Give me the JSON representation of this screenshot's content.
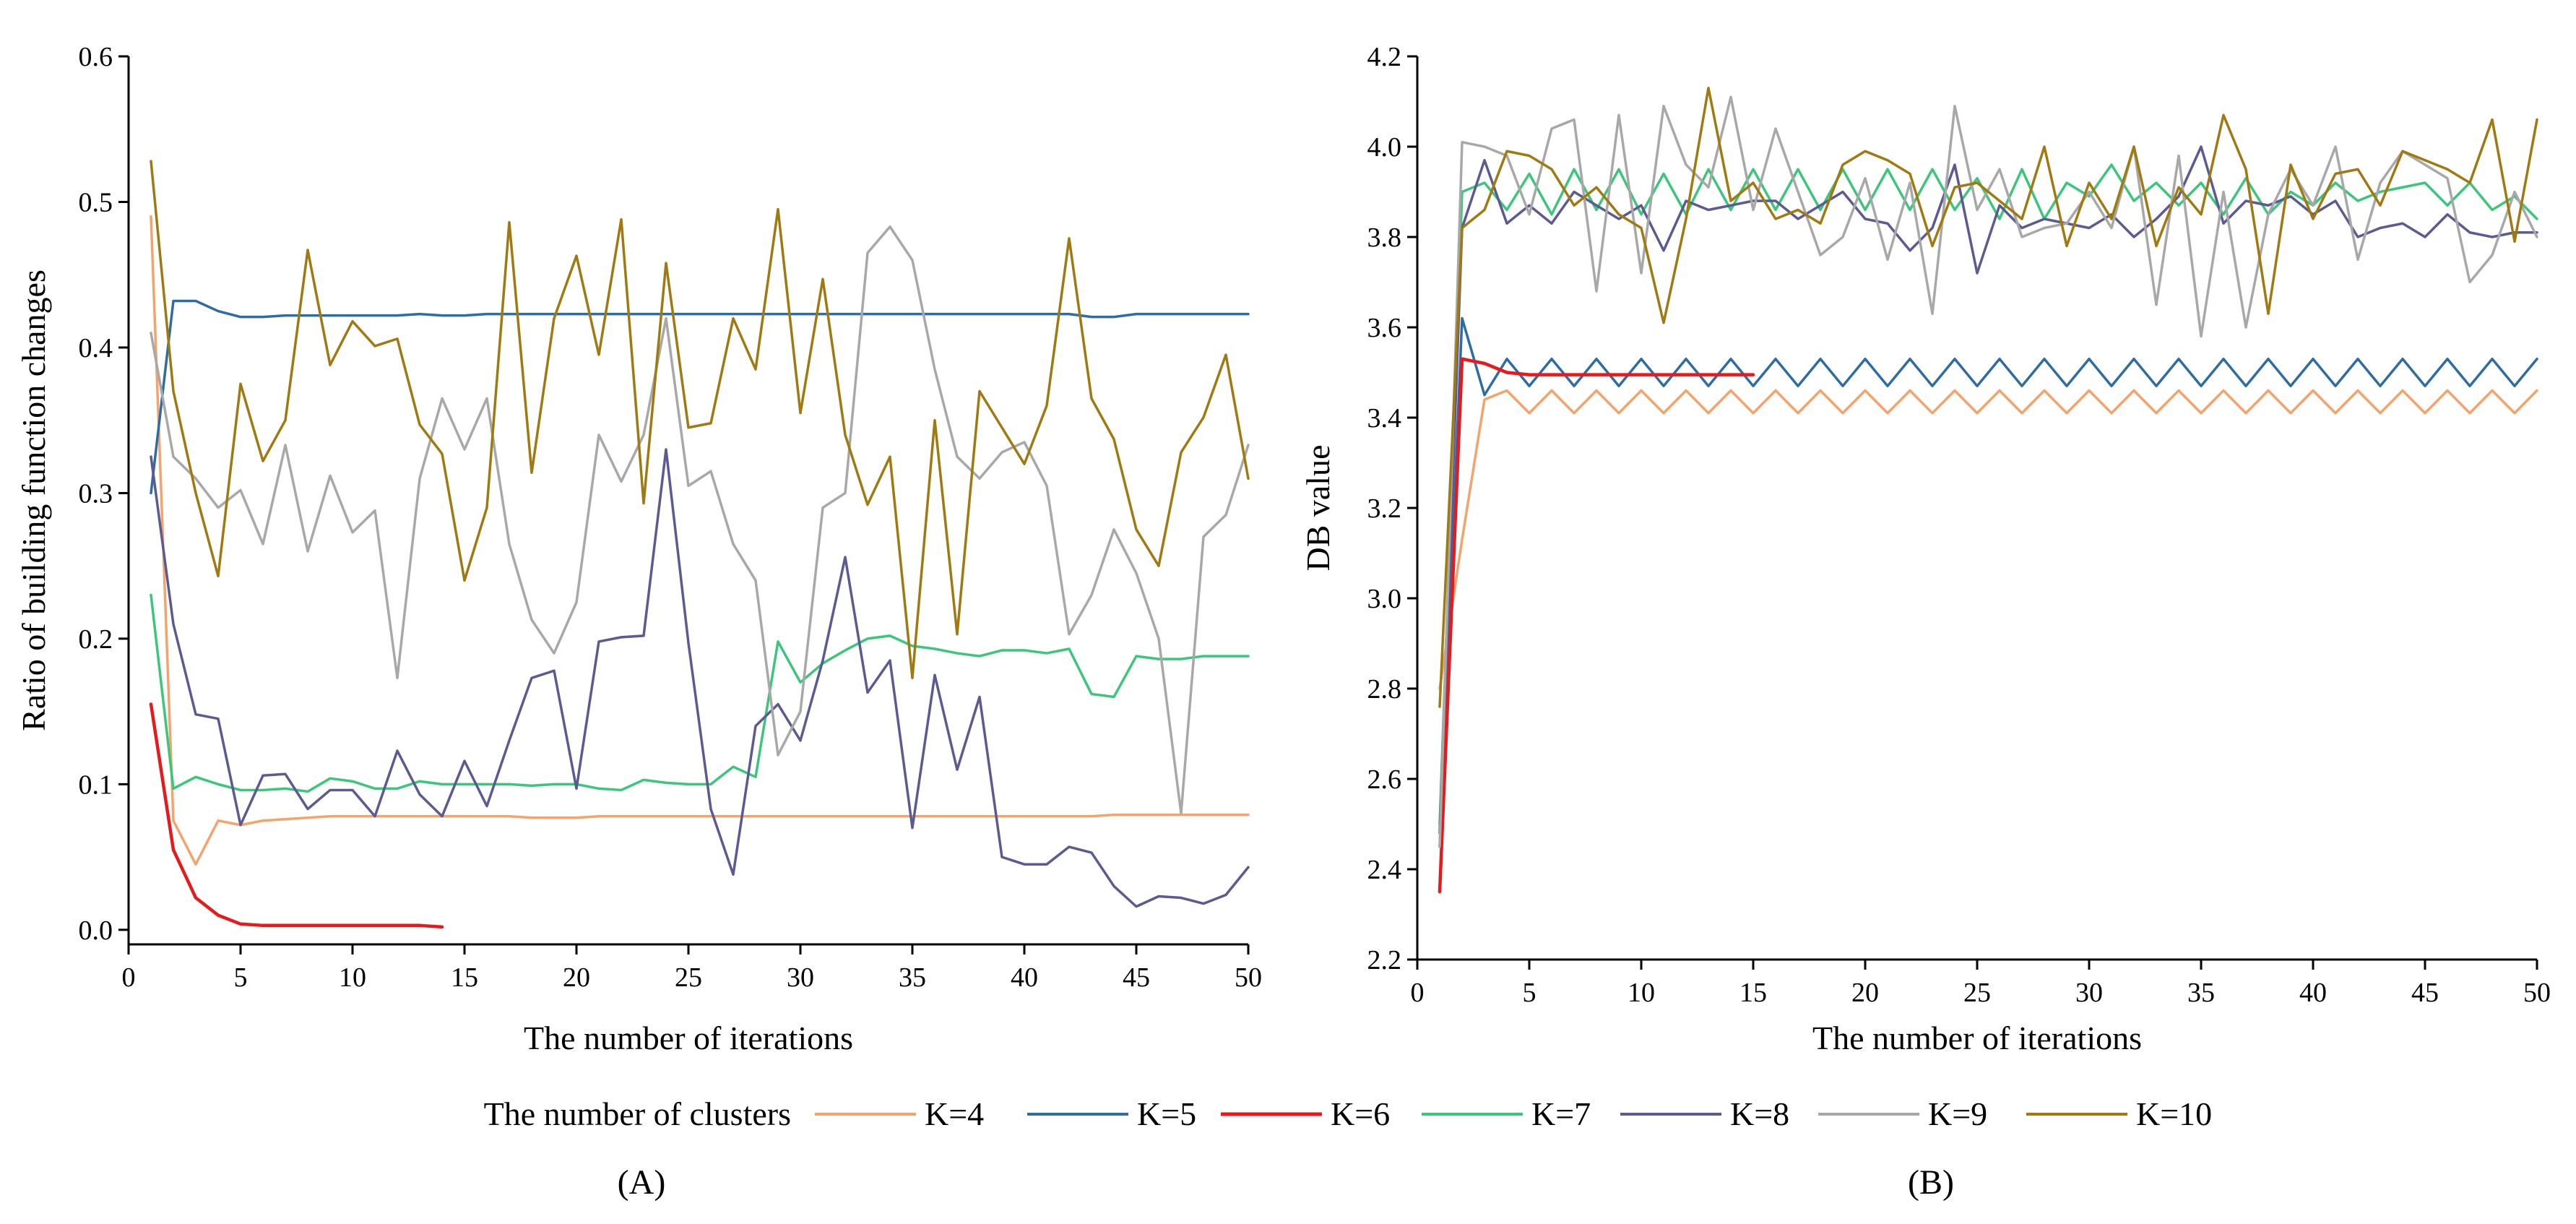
{
  "colors": {
    "K=4": "#f4a46b",
    "K=5": "#2e6da4",
    "K=6": "#e8191b",
    "K=7": "#3bc77a",
    "K=8": "#5b5a92",
    "K=9": "#a8a8a8",
    "K=10": "#a07a10"
  },
  "legend": {
    "title": "The number of clusters",
    "entries": [
      "K=4",
      "K=5",
      "K=6",
      "K=7",
      "K=8",
      "K=9",
      "K=10"
    ]
  },
  "chart_data": [
    {
      "type": "line",
      "panel_label": "(A)",
      "xlabel": "The number of iterations",
      "ylabel": "Ratio of building function changes",
      "xlim": [
        0,
        50
      ],
      "ylim": [
        -0.01,
        0.6
      ],
      "xticks": [
        0,
        5,
        10,
        15,
        20,
        25,
        30,
        35,
        40,
        45,
        50
      ],
      "yticks": [
        0.0,
        0.1,
        0.2,
        0.3,
        0.4,
        0.5,
        0.6
      ],
      "ytick_labels": [
        "0.0",
        "0.1",
        "0.2",
        "0.3",
        "0.4",
        "0.5",
        "0.6"
      ],
      "series": [
        {
          "name": "K=4",
          "x_start": 1,
          "values": [
            0.49,
            0.075,
            0.045,
            0.075,
            0.072,
            0.075,
            0.076,
            0.077,
            0.078,
            0.078,
            0.078,
            0.078,
            0.078,
            0.078,
            0.078,
            0.078,
            0.078,
            0.077,
            0.077,
            0.077,
            0.078,
            0.078,
            0.078,
            0.078,
            0.078,
            0.078,
            0.078,
            0.078,
            0.078,
            0.078,
            0.078,
            0.078,
            0.078,
            0.078,
            0.078,
            0.078,
            0.078,
            0.078,
            0.078,
            0.078,
            0.078,
            0.078,
            0.078,
            0.079,
            0.079,
            0.079,
            0.079,
            0.079,
            0.079,
            0.079
          ]
        },
        {
          "name": "K=5",
          "x_start": 1,
          "values": [
            0.3,
            0.432,
            0.432,
            0.425,
            0.421,
            0.421,
            0.422,
            0.422,
            0.422,
            0.422,
            0.422,
            0.422,
            0.423,
            0.422,
            0.422,
            0.423,
            0.423,
            0.423,
            0.423,
            0.423,
            0.423,
            0.423,
            0.423,
            0.423,
            0.423,
            0.423,
            0.423,
            0.423,
            0.423,
            0.423,
            0.423,
            0.423,
            0.423,
            0.423,
            0.423,
            0.423,
            0.423,
            0.423,
            0.423,
            0.423,
            0.423,
            0.423,
            0.421,
            0.421,
            0.423,
            0.423,
            0.423,
            0.423,
            0.423,
            0.423
          ]
        },
        {
          "name": "K=6",
          "x_start": 1,
          "values": [
            0.155,
            0.055,
            0.022,
            0.01,
            0.004,
            0.003,
            0.003,
            0.003,
            0.003,
            0.003,
            0.003,
            0.003,
            0.003,
            0.002
          ]
        },
        {
          "name": "K=7",
          "x_start": 1,
          "values": [
            0.23,
            0.097,
            0.105,
            0.1,
            0.096,
            0.096,
            0.097,
            0.095,
            0.104,
            0.102,
            0.097,
            0.097,
            0.102,
            0.1,
            0.1,
            0.1,
            0.1,
            0.099,
            0.1,
            0.1,
            0.097,
            0.096,
            0.103,
            0.101,
            0.1,
            0.1,
            0.112,
            0.105,
            0.198,
            0.17,
            0.183,
            0.192,
            0.2,
            0.202,
            0.195,
            0.193,
            0.19,
            0.188,
            0.192,
            0.192,
            0.19,
            0.193,
            0.162,
            0.16,
            0.188,
            0.186,
            0.186,
            0.188,
            0.188,
            0.188
          ]
        },
        {
          "name": "K=8",
          "x_start": 1,
          "values": [
            0.325,
            0.21,
            0.148,
            0.145,
            0.072,
            0.106,
            0.107,
            0.083,
            0.096,
            0.096,
            0.078,
            0.123,
            0.093,
            0.078,
            0.116,
            0.085,
            0.13,
            0.173,
            0.178,
            0.097,
            0.198,
            0.201,
            0.202,
            0.33,
            0.197,
            0.083,
            0.038,
            0.14,
            0.155,
            0.13,
            0.185,
            0.256,
            0.163,
            0.185,
            0.07,
            0.175,
            0.11,
            0.16,
            0.05,
            0.045,
            0.045,
            0.057,
            0.053,
            0.03,
            0.016,
            0.023,
            0.022,
            0.018,
            0.024,
            0.043
          ]
        },
        {
          "name": "K=9",
          "x_start": 1,
          "values": [
            0.41,
            0.325,
            0.31,
            0.29,
            0.302,
            0.265,
            0.333,
            0.26,
            0.312,
            0.273,
            0.288,
            0.173,
            0.31,
            0.365,
            0.33,
            0.365,
            0.265,
            0.213,
            0.19,
            0.225,
            0.34,
            0.308,
            0.34,
            0.42,
            0.305,
            0.315,
            0.265,
            0.24,
            0.12,
            0.15,
            0.29,
            0.3,
            0.465,
            0.483,
            0.46,
            0.385,
            0.325,
            0.31,
            0.328,
            0.335,
            0.305,
            0.203,
            0.23,
            0.275,
            0.245,
            0.2,
            0.08,
            0.27,
            0.285,
            0.333
          ]
        },
        {
          "name": "K=10",
          "x_start": 1,
          "values": [
            0.528,
            0.37,
            0.3,
            0.243,
            0.375,
            0.322,
            0.35,
            0.467,
            0.388,
            0.418,
            0.401,
            0.406,
            0.347,
            0.327,
            0.24,
            0.29,
            0.486,
            0.314,
            0.42,
            0.463,
            0.395,
            0.488,
            0.293,
            0.458,
            0.345,
            0.348,
            0.42,
            0.385,
            0.495,
            0.355,
            0.447,
            0.34,
            0.292,
            0.325,
            0.173,
            0.35,
            0.203,
            0.37,
            0.345,
            0.32,
            0.36,
            0.475,
            0.365,
            0.337,
            0.275,
            0.25,
            0.328,
            0.352,
            0.395,
            0.31
          ]
        }
      ]
    },
    {
      "type": "line",
      "panel_label": "(B)",
      "xlabel": "The number of iterations",
      "ylabel": "DB value",
      "xlim": [
        0,
        50
      ],
      "ylim": [
        2.2,
        4.2
      ],
      "xticks": [
        0,
        5,
        10,
        15,
        20,
        25,
        30,
        35,
        40,
        45,
        50
      ],
      "yticks": [
        2.2,
        2.4,
        2.6,
        2.8,
        3.0,
        3.2,
        3.4,
        3.6,
        3.8,
        4.0,
        4.2
      ],
      "ytick_labels": [
        "2.2",
        "2.4",
        "2.6",
        "2.8",
        "3.0",
        "3.2",
        "3.4",
        "3.6",
        "3.8",
        "4.0",
        "4.2"
      ],
      "series": [
        {
          "name": "K=4",
          "x_start": 1,
          "values": [
            2.8,
            3.13,
            3.44,
            3.46,
            3.41,
            3.46,
            3.41,
            3.46,
            3.41,
            3.46,
            3.41,
            3.46,
            3.41,
            3.46,
            3.41,
            3.46,
            3.41,
            3.46,
            3.41,
            3.46,
            3.41,
            3.46,
            3.41,
            3.46,
            3.41,
            3.46,
            3.41,
            3.46,
            3.41,
            3.46,
            3.41,
            3.46,
            3.41,
            3.46,
            3.41,
            3.46,
            3.41,
            3.46,
            3.41,
            3.46,
            3.41,
            3.46,
            3.41,
            3.46,
            3.41,
            3.46,
            3.41,
            3.46,
            3.41,
            3.46
          ]
        },
        {
          "name": "K=5",
          "x_start": 1,
          "values": [
            2.45,
            3.62,
            3.45,
            3.53,
            3.47,
            3.53,
            3.47,
            3.53,
            3.47,
            3.53,
            3.47,
            3.53,
            3.47,
            3.53,
            3.47,
            3.53,
            3.47,
            3.53,
            3.47,
            3.53,
            3.47,
            3.53,
            3.47,
            3.53,
            3.47,
            3.53,
            3.47,
            3.53,
            3.47,
            3.53,
            3.47,
            3.53,
            3.47,
            3.53,
            3.47,
            3.53,
            3.47,
            3.53,
            3.47,
            3.53,
            3.47,
            3.53,
            3.47,
            3.53,
            3.47,
            3.53,
            3.47,
            3.53,
            3.47,
            3.53
          ]
        },
        {
          "name": "K=6",
          "x_start": 1,
          "values": [
            2.35,
            3.53,
            3.52,
            3.5,
            3.495,
            3.495,
            3.495,
            3.495,
            3.495,
            3.495,
            3.495,
            3.495,
            3.495,
            3.495,
            3.495
          ]
        },
        {
          "name": "K=7",
          "x_start": 1,
          "values": [
            2.5,
            3.9,
            3.92,
            3.86,
            3.94,
            3.85,
            3.95,
            3.86,
            3.95,
            3.85,
            3.94,
            3.85,
            3.95,
            3.86,
            3.95,
            3.86,
            3.95,
            3.86,
            3.95,
            3.86,
            3.95,
            3.86,
            3.95,
            3.86,
            3.93,
            3.84,
            3.95,
            3.84,
            3.92,
            3.89,
            3.96,
            3.88,
            3.92,
            3.87,
            3.92,
            3.85,
            3.93,
            3.85,
            3.9,
            3.87,
            3.92,
            3.88,
            3.9,
            3.91,
            3.92,
            3.87,
            3.92,
            3.86,
            3.89,
            3.84
          ]
        },
        {
          "name": "K=8",
          "x_start": 1,
          "values": [
            2.48,
            3.82,
            3.97,
            3.83,
            3.87,
            3.83,
            3.9,
            3.87,
            3.84,
            3.87,
            3.77,
            3.88,
            3.86,
            3.87,
            3.88,
            3.88,
            3.84,
            3.87,
            3.9,
            3.84,
            3.83,
            3.77,
            3.82,
            3.96,
            3.72,
            3.87,
            3.82,
            3.84,
            3.83,
            3.82,
            3.85,
            3.8,
            3.84,
            3.89,
            4.0,
            3.83,
            3.88,
            3.87,
            3.89,
            3.85,
            3.88,
            3.8,
            3.82,
            3.83,
            3.8,
            3.85,
            3.81,
            3.8,
            3.81,
            3.81
          ]
        },
        {
          "name": "K=9",
          "x_start": 1,
          "values": [
            2.45,
            4.01,
            4.0,
            3.98,
            3.85,
            4.04,
            4.06,
            3.68,
            4.07,
            3.72,
            4.09,
            3.96,
            3.91,
            4.11,
            3.86,
            4.04,
            3.9,
            3.76,
            3.8,
            3.93,
            3.75,
            3.92,
            3.63,
            4.09,
            3.86,
            3.95,
            3.8,
            3.82,
            3.83,
            3.9,
            3.82,
            4.0,
            3.65,
            3.98,
            3.58,
            3.9,
            3.6,
            3.85,
            3.95,
            3.87,
            4.0,
            3.75,
            3.92,
            3.99,
            3.96,
            3.93,
            3.7,
            3.76,
            3.9,
            3.8
          ]
        },
        {
          "name": "K=10",
          "x_start": 1,
          "values": [
            2.76,
            3.82,
            3.86,
            3.99,
            3.98,
            3.95,
            3.87,
            3.91,
            3.85,
            3.82,
            3.61,
            3.84,
            4.13,
            3.88,
            3.92,
            3.84,
            3.86,
            3.83,
            3.96,
            3.99,
            3.97,
            3.94,
            3.78,
            3.91,
            3.92,
            3.88,
            3.84,
            4.0,
            3.78,
            3.92,
            3.84,
            4.0,
            3.78,
            3.91,
            3.85,
            4.07,
            3.95,
            3.63,
            3.96,
            3.84,
            3.94,
            3.95,
            3.87,
            3.99,
            3.97,
            3.95,
            3.92,
            4.06,
            3.79,
            4.06
          ]
        }
      ]
    }
  ]
}
